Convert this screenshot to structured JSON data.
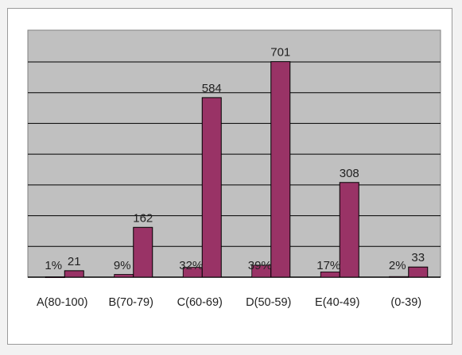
{
  "chart_data": {
    "type": "bar",
    "categories": [
      "A(80-100)",
      "B(70-79)",
      "C(60-69)",
      "D(50-59)",
      "E(40-49)",
      "(0-39)"
    ],
    "series": [
      {
        "values": [
          21,
          162,
          584,
          701,
          308,
          33
        ],
        "color": "#993366"
      },
      {
        "values": [
          1,
          9,
          32,
          39,
          17,
          2
        ],
        "color": "#993366"
      }
    ],
    "value_labels": [
      "21",
      "162",
      "584",
      "701",
      "308",
      "33"
    ],
    "percent_labels": [
      "1%",
      "9%",
      "32%",
      "39%",
      "17%",
      "2%"
    ],
    "title": "",
    "xlabel": "",
    "ylabel": "",
    "ylim": [
      0,
      700
    ],
    "y_gridlines": [
      0,
      100,
      200,
      300,
      400,
      500,
      600,
      700
    ],
    "grid": true,
    "plot_background": "#c0c0c0",
    "legend": "none"
  }
}
